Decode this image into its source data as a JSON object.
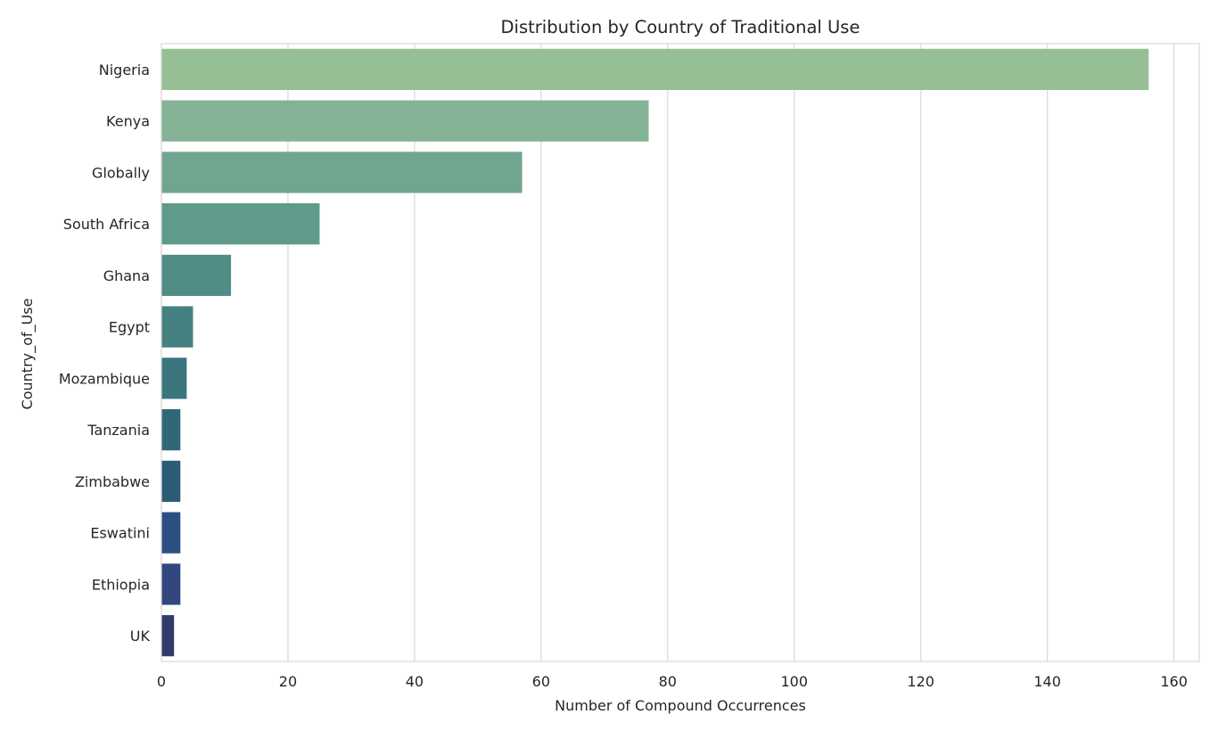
{
  "chart_data": {
    "type": "bar",
    "orientation": "horizontal",
    "title": "Distribution by Country of Traditional Use",
    "xlabel": "Number of Compound Occurrences",
    "ylabel": "Country_of_Use",
    "categories": [
      "Nigeria",
      "Kenya",
      "Globally",
      "South Africa",
      "Ghana",
      "Egypt",
      "Mozambique",
      "Tanzania",
      "Zimbabwe",
      "Eswatini",
      "Ethiopia",
      "UK"
    ],
    "values": [
      156,
      77,
      57,
      25,
      11,
      5,
      4,
      3,
      3,
      3,
      3,
      2
    ],
    "xlim": [
      0,
      164
    ],
    "xticks": [
      "0",
      "20",
      "40",
      "60",
      "80",
      "100",
      "120",
      "140",
      "160"
    ],
    "grid": "vertical",
    "legend": "none",
    "bar_colors": [
      "#96bf96",
      "#84b395",
      "#70a68f",
      "#5f9a8b",
      "#518d86",
      "#468182",
      "#3b757e",
      "#316879",
      "#2b5c76",
      "#2c5082",
      "#31477d",
      "#313c6d"
    ],
    "grid_color": "#d9d9d9",
    "spine_color": "#d9d9d9",
    "text_color": "#262626"
  }
}
